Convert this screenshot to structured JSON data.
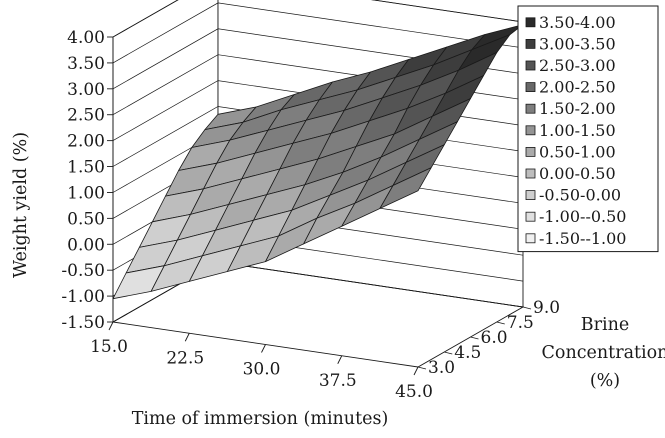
{
  "chart_data": {
    "type": "surface-3d",
    "title": "",
    "zlabel": "Weight yield (%)",
    "xlabel": "Time of immersion (minutes)",
    "ylabel_lines": [
      "Brine",
      "Concentration",
      "(%)"
    ],
    "x_ticks": [
      "15.0",
      "22.5",
      "30.0",
      "37.5",
      "45.0"
    ],
    "y_ticks": [
      "3.0",
      "4.5",
      "6.0",
      "7.5",
      "9.0"
    ],
    "z_ticks": [
      "4.00",
      "3.50",
      "3.00",
      "2.50",
      "2.00",
      "1.50",
      "1.00",
      "0.50",
      "0.00",
      "-0.50",
      "-1.00",
      "-1.50"
    ],
    "zlim": [
      -1.5,
      4.0
    ],
    "x": [
      15.0,
      18.75,
      22.5,
      26.25,
      30.0,
      33.75,
      37.5,
      41.25,
      45.0
    ],
    "y": [
      3.0,
      3.75,
      4.5,
      5.25,
      6.0,
      6.75,
      7.5,
      8.25,
      9.0
    ],
    "z_rows_by_brine": [
      [
        -1.05,
        -0.8,
        -0.5,
        -0.2,
        0.1,
        0.55,
        1.0,
        1.45,
        1.9
      ],
      [
        -0.7,
        -0.45,
        -0.15,
        0.15,
        0.45,
        0.9,
        1.3,
        1.75,
        2.2
      ],
      [
        -0.35,
        -0.1,
        0.2,
        0.5,
        0.8,
        1.2,
        1.6,
        2.05,
        2.5
      ],
      [
        0.0,
        0.25,
        0.55,
        0.85,
        1.15,
        1.5,
        1.9,
        2.35,
        2.8
      ],
      [
        0.35,
        0.6,
        0.9,
        1.2,
        1.5,
        1.85,
        2.2,
        2.65,
        3.1
      ],
      [
        0.7,
        0.95,
        1.25,
        1.55,
        1.85,
        2.2,
        2.55,
        2.95,
        3.4
      ],
      [
        1.0,
        1.25,
        1.55,
        1.85,
        2.15,
        2.5,
        2.85,
        3.25,
        3.7
      ],
      [
        1.2,
        1.45,
        1.8,
        2.1,
        2.4,
        2.75,
        3.1,
        3.5,
        3.9
      ],
      [
        1.35,
        1.6,
        1.95,
        2.3,
        2.6,
        2.95,
        3.3,
        3.65,
        3.95
      ]
    ],
    "legend": [
      {
        "label": "3.50-4.00",
        "color": "#2a2a2a"
      },
      {
        "label": "3.00-3.50",
        "color": "#3d3d3d"
      },
      {
        "label": "2.50-3.00",
        "color": "#545454"
      },
      {
        "label": "2.00-2.50",
        "color": "#686868"
      },
      {
        "label": "1.50-2.00",
        "color": "#7e7e7e"
      },
      {
        "label": "1.00-1.50",
        "color": "#949494"
      },
      {
        "label": "0.50-1.00",
        "color": "#aaaaaa"
      },
      {
        "label": "0.00-0.50",
        "color": "#bdbdbd"
      },
      {
        "label": "-0.50-0.00",
        "color": "#cfcfcf"
      },
      {
        "label": "-1.00--0.50",
        "color": "#e0e0e0"
      },
      {
        "label": "-1.50--1.00",
        "color": "#f0f0f0"
      }
    ],
    "legend_placement": "right",
    "grid": true,
    "line_color": "#1a1a1a"
  }
}
